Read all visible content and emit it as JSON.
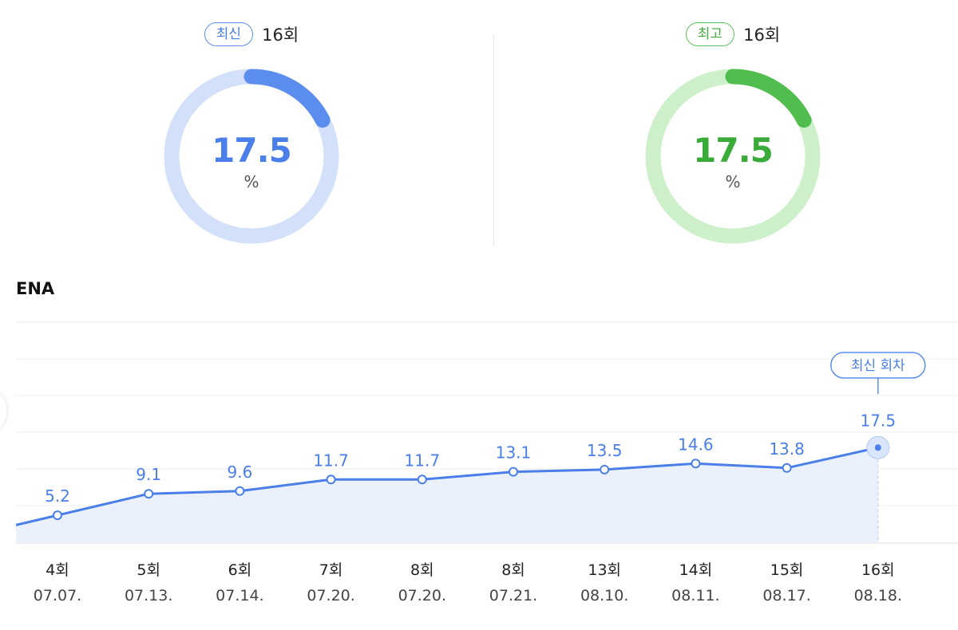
{
  "gauges": {
    "latest": {
      "badge": "최신",
      "episode": "16회",
      "value": "17.5",
      "unit": "%",
      "fraction": 0.175,
      "color": "#5b8def",
      "track": "#d3e0fa"
    },
    "best": {
      "badge": "최고",
      "episode": "16회",
      "value": "17.5",
      "unit": "%",
      "fraction": 0.175,
      "color": "#52bd4f",
      "track": "#cdf0cb"
    }
  },
  "channel": "ENA",
  "chart_data": {
    "type": "line",
    "categories": [
      "4회",
      "5회",
      "6회",
      "7회",
      "8회",
      "8회",
      "13회",
      "14회",
      "15회",
      "16회"
    ],
    "dates": [
      "07.07.",
      "07.13.",
      "07.14.",
      "07.20.",
      "07.20.",
      "07.21.",
      "08.10.",
      "08.11.",
      "08.17.",
      "08.18."
    ],
    "values": [
      5.2,
      9.1,
      9.6,
      11.7,
      11.7,
      13.1,
      13.5,
      14.6,
      13.8,
      17.5
    ],
    "value_labels": [
      "5.2",
      "9.1",
      "9.6",
      "11.7",
      "11.7",
      "13.1",
      "13.5",
      "14.6",
      "13.8",
      "17.5"
    ],
    "highlight_label": "최신 회차",
    "highlight_index": 9,
    "grid": true,
    "line_color": "#4a7ee8",
    "fill_color": "#eaf1fd"
  }
}
